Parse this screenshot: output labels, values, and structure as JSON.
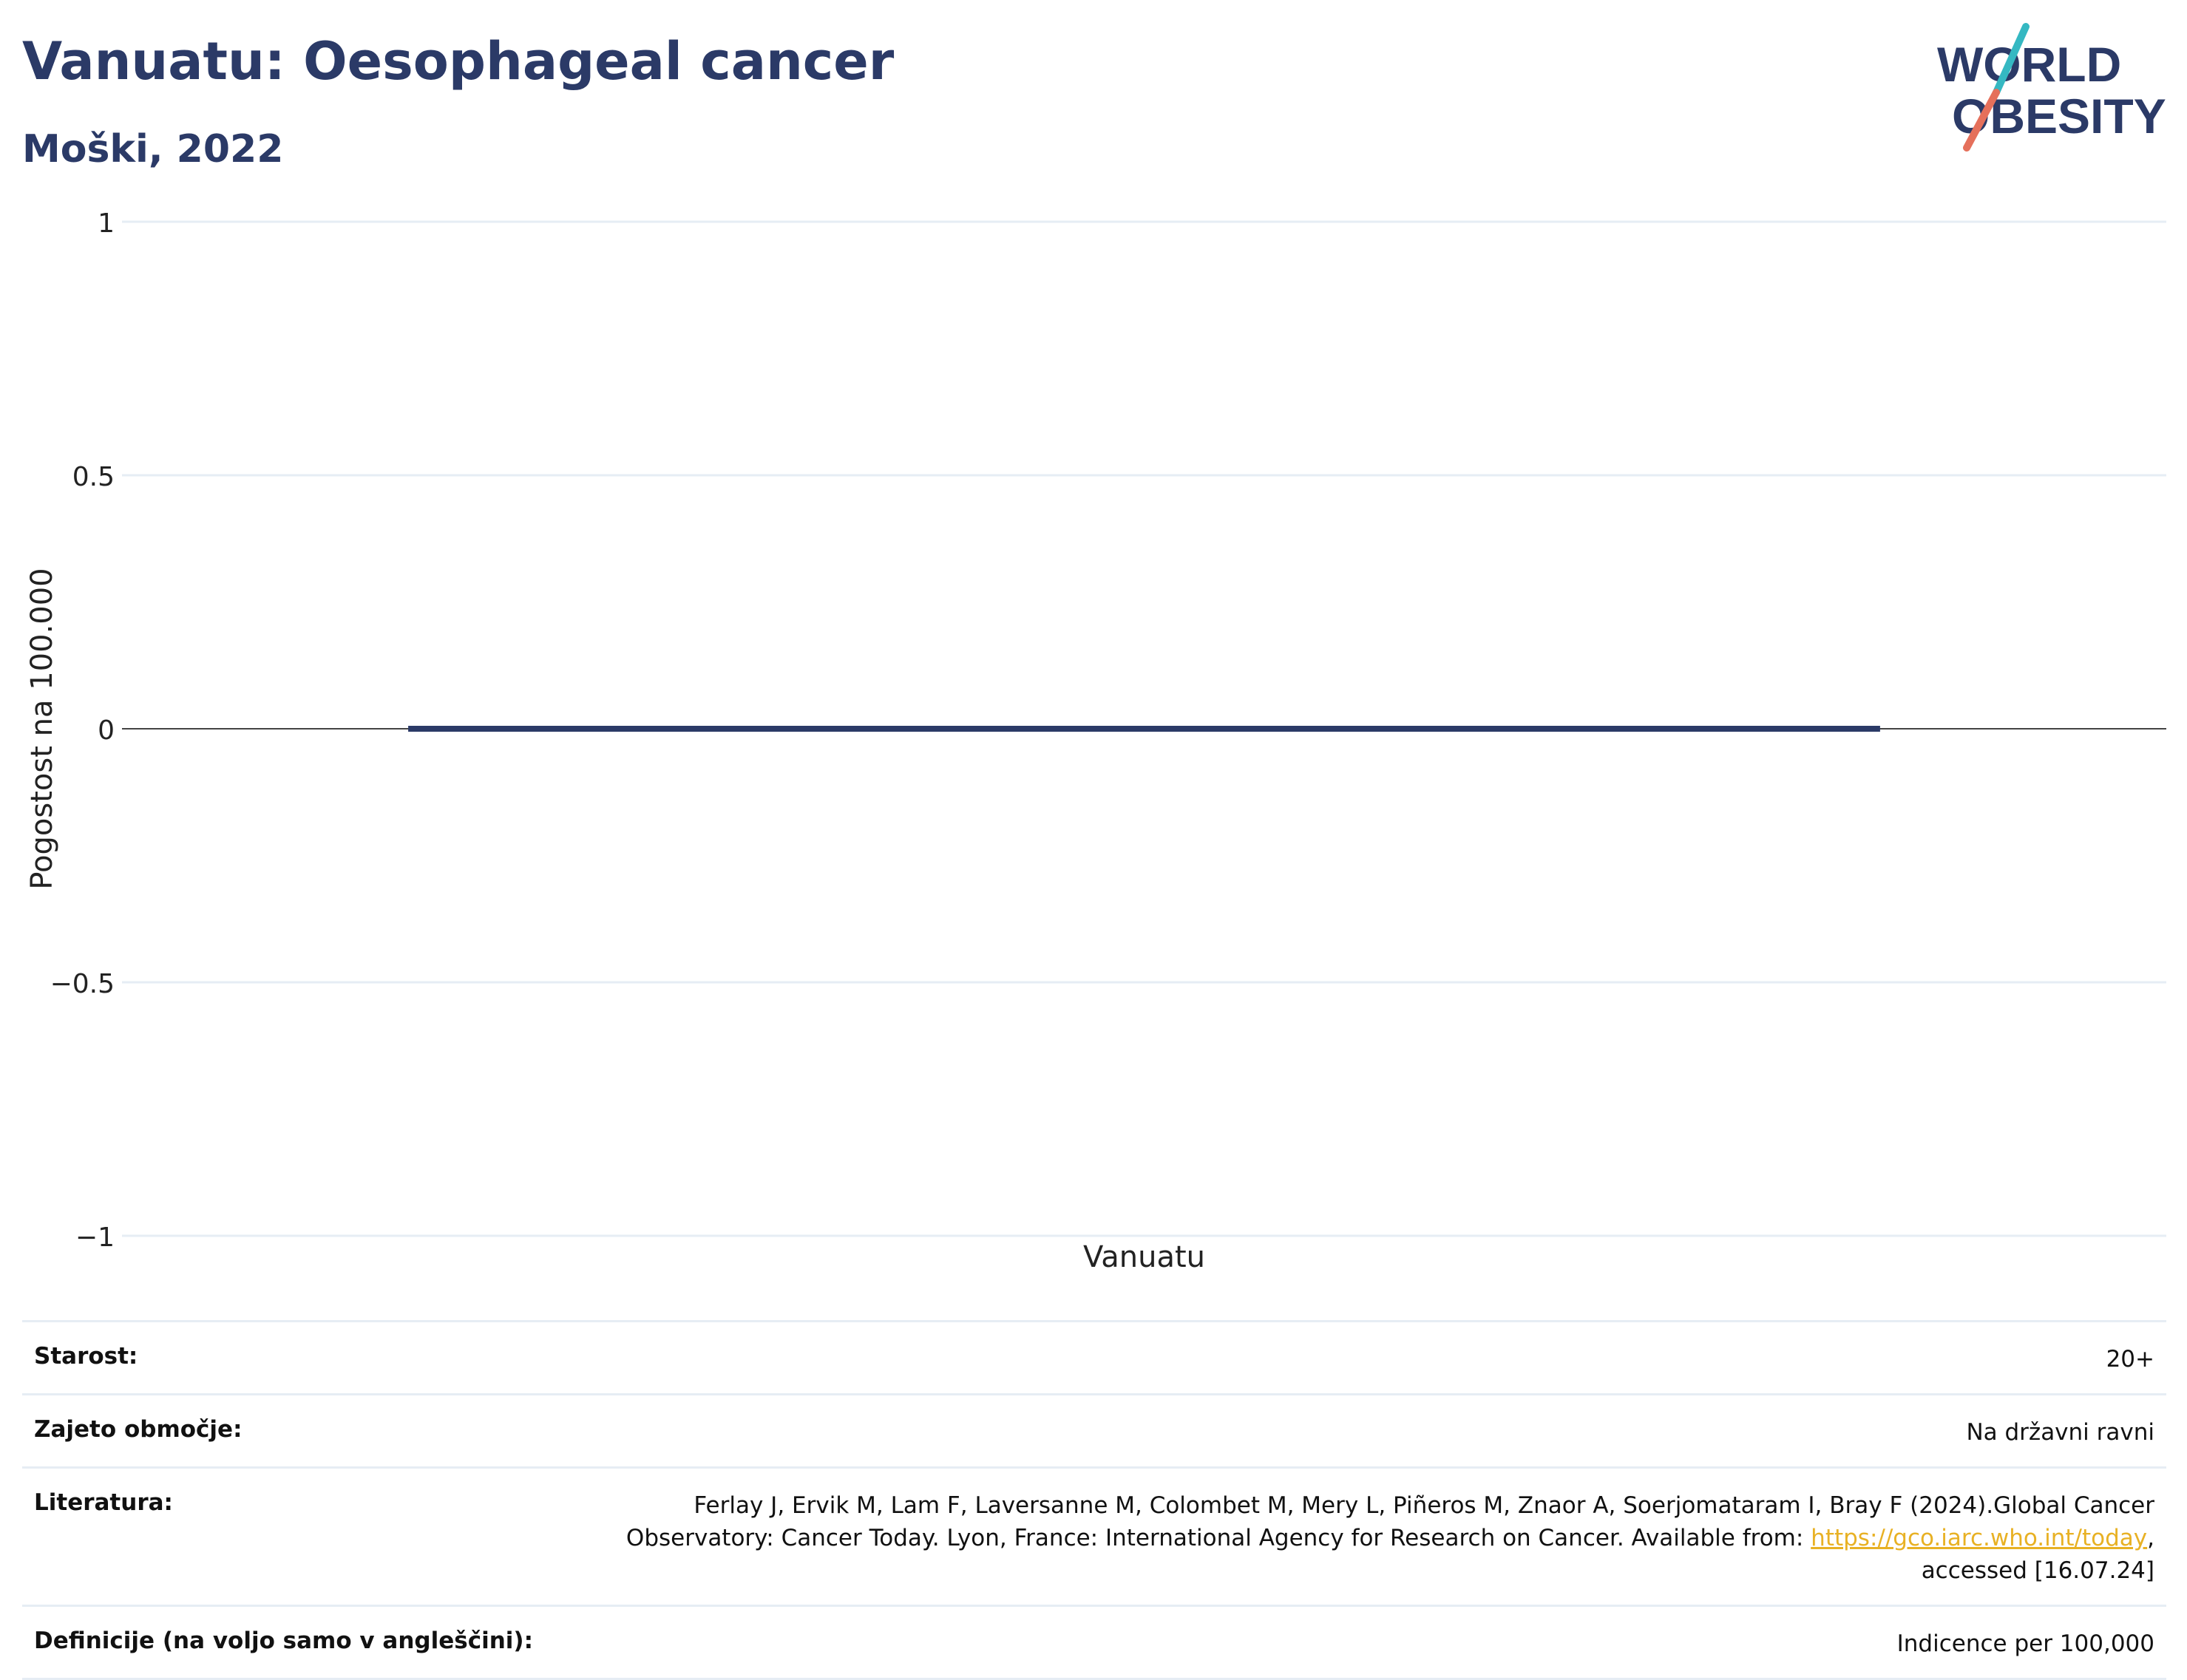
{
  "header": {
    "title": "Vanuatu: Oesophageal cancer",
    "subtitle": "Moški, 2022"
  },
  "logo": {
    "line1": "WORLD",
    "line2": "OBESITY",
    "colors": {
      "text": "#2b3a67",
      "slash_top": "#35b8c2",
      "slash_bottom": "#e5705b"
    }
  },
  "chart_data": {
    "type": "bar",
    "categories": [
      "Vanuatu"
    ],
    "series": [
      {
        "values": [
          0
        ]
      }
    ],
    "ylabel": "Pogostost na 100.000",
    "xlabel": "",
    "ylim": [
      -1,
      1
    ],
    "yticks": [
      1,
      0.5,
      0,
      -0.5,
      -1
    ],
    "ytick_labels": [
      "1",
      "0.5",
      "0",
      "−0.5",
      "−1"
    ],
    "grid": true,
    "bar_color": "#2b3a67"
  },
  "meta": {
    "age_label": "Starost:",
    "age_value": "20+",
    "coverage_label": "Zajeto območje:",
    "coverage_value": "Na državni ravni",
    "references_label": "Literatura:",
    "references_text_1": "Ferlay J, Ervik M, Lam F, Laversanne M, Colombet M, Mery L, Piñeros M, Znaor A, Soerjomataram I, Bray F (2024).Global Cancer Observatory: Cancer Today. Lyon, France: International Agency for Research on Cancer. Available from: ",
    "references_link": "https://gco.iarc.who.int/today",
    "references_text_2": ", accessed [16.07.24]",
    "definitions_label": "Definicije (na voljo samo v angleščini):",
    "definitions_value": "Indicence per 100,000"
  }
}
